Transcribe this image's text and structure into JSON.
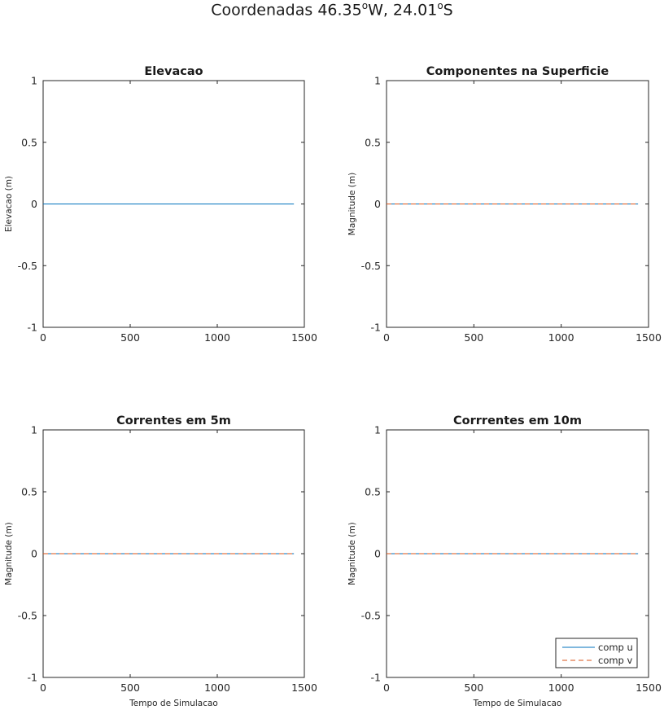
{
  "figure": {
    "title_prefix": "Coordenadas 46.35",
    "title_deg1": "o",
    "title_mid": "W, 24.01",
    "title_deg2": "o",
    "title_suffix": "S"
  },
  "colors": {
    "series_u": "#0072BD",
    "series_v": "#D95319",
    "axes": "#262626",
    "background": "#ffffff"
  },
  "chart_data": [
    {
      "type": "line",
      "title": "Elevacao",
      "xlabel": "",
      "ylabel": "Elevacao (m)",
      "xlim": [
        0,
        1500
      ],
      "ylim": [
        -1,
        1
      ],
      "xticks": [
        0,
        500,
        1000,
        1500
      ],
      "yticks": [
        -1,
        -0.5,
        0,
        0.5,
        1
      ],
      "xtick_labels": [
        "0",
        "500",
        "1000",
        "1500"
      ],
      "ytick_labels": [
        "-1",
        "-0.5",
        "0",
        "0.5",
        "1"
      ],
      "grid": false,
      "legend": null,
      "series": [
        {
          "style": "solid",
          "color": "#0072BD",
          "x": [
            0,
            1440
          ],
          "y": [
            0,
            0
          ]
        }
      ]
    },
    {
      "type": "line",
      "title": "Componentes na Superficie",
      "xlabel": "",
      "ylabel": "Magnitude (m)",
      "xlim": [
        0,
        1500
      ],
      "ylim": [
        -1,
        1
      ],
      "xticks": [
        0,
        500,
        1000,
        1500
      ],
      "yticks": [
        -1,
        -0.5,
        0,
        0.5,
        1
      ],
      "xtick_labels": [
        "0",
        "500",
        "1000",
        "1500"
      ],
      "ytick_labels": [
        "-1",
        "-0.5",
        "0",
        "0.5",
        "1"
      ],
      "grid": false,
      "legend": null,
      "series": [
        {
          "style": "solid",
          "color": "#0072BD",
          "x": [
            0,
            1440
          ],
          "y": [
            0,
            0
          ]
        },
        {
          "style": "dashed",
          "color": "#D95319",
          "x": [
            0,
            1440
          ],
          "y": [
            0,
            0
          ]
        }
      ]
    },
    {
      "type": "line",
      "title": "Correntes em 5m",
      "xlabel": "Tempo de Simulacao",
      "ylabel": "Magnitude (m)",
      "xlim": [
        0,
        1500
      ],
      "ylim": [
        -1,
        1
      ],
      "xticks": [
        0,
        500,
        1000,
        1500
      ],
      "yticks": [
        -1,
        -0.5,
        0,
        0.5,
        1
      ],
      "xtick_labels": [
        "0",
        "500",
        "1000",
        "1500"
      ],
      "ytick_labels": [
        "-1",
        "-0.5",
        "0",
        "0.5",
        "1"
      ],
      "grid": false,
      "legend": null,
      "series": [
        {
          "style": "solid",
          "color": "#0072BD",
          "x": [
            0,
            1440
          ],
          "y": [
            0,
            0
          ]
        },
        {
          "style": "dashed",
          "color": "#D95319",
          "x": [
            0,
            1440
          ],
          "y": [
            0,
            0
          ]
        }
      ]
    },
    {
      "type": "line",
      "title": "Corrrentes em 10m",
      "xlabel": "Tempo de Simulacao",
      "ylabel": "Magnitude (m)",
      "xlim": [
        0,
        1500
      ],
      "ylim": [
        -1,
        1
      ],
      "xticks": [
        0,
        500,
        1000,
        1500
      ],
      "yticks": [
        -1,
        -0.5,
        0,
        0.5,
        1
      ],
      "xtick_labels": [
        "0",
        "500",
        "1000",
        "1500"
      ],
      "ytick_labels": [
        "-1",
        "-0.5",
        "0",
        "0.5",
        "1"
      ],
      "grid": false,
      "legend": {
        "location": "bottom-right",
        "entries": [
          "comp u",
          "comp v"
        ]
      },
      "series": [
        {
          "name": "comp u",
          "style": "solid",
          "color": "#0072BD",
          "x": [
            0,
            1440
          ],
          "y": [
            0,
            0
          ]
        },
        {
          "name": "comp v",
          "style": "dashed",
          "color": "#D95319",
          "x": [
            0,
            1440
          ],
          "y": [
            0,
            0
          ]
        }
      ]
    }
  ]
}
